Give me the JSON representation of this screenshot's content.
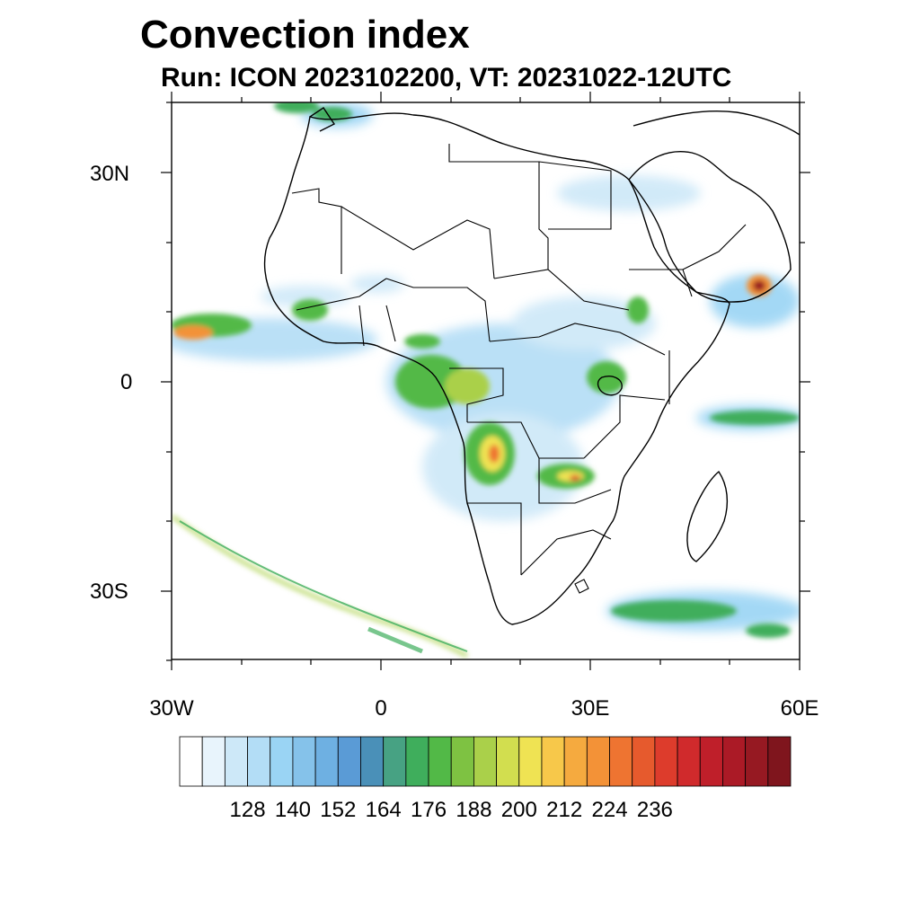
{
  "title": "Convection index",
  "subtitle": "Run: ICON 2023102200,  VT: 20231022-12UTC",
  "axes": {
    "lat_labels": [
      "30N",
      "0",
      "30S"
    ],
    "lon_labels": [
      "30W",
      "0",
      "30E",
      "60E"
    ]
  },
  "colorbar": {
    "labels": [
      "128",
      "140",
      "152",
      "164",
      "176",
      "188",
      "200",
      "212",
      "224",
      "236"
    ],
    "colors": [
      "#ffffff",
      "#e8f4fc",
      "#cde8f8",
      "#b3ddf6",
      "#9ad4f4",
      "#85c2ea",
      "#6eb0e2",
      "#5a9bd6",
      "#4a90b8",
      "#47a283",
      "#3fae5c",
      "#52b947",
      "#7ec242",
      "#aad04a",
      "#d2de4f",
      "#efe353",
      "#f7c84a",
      "#f5aa3f",
      "#f39237",
      "#ee7431",
      "#e65a2d",
      "#dd3c2c",
      "#d02a2c",
      "#bf1f2a",
      "#ab1a26",
      "#961922",
      "#7f151d"
    ]
  },
  "colors": {
    "coast": "#000000",
    "frame": "#000000"
  }
}
